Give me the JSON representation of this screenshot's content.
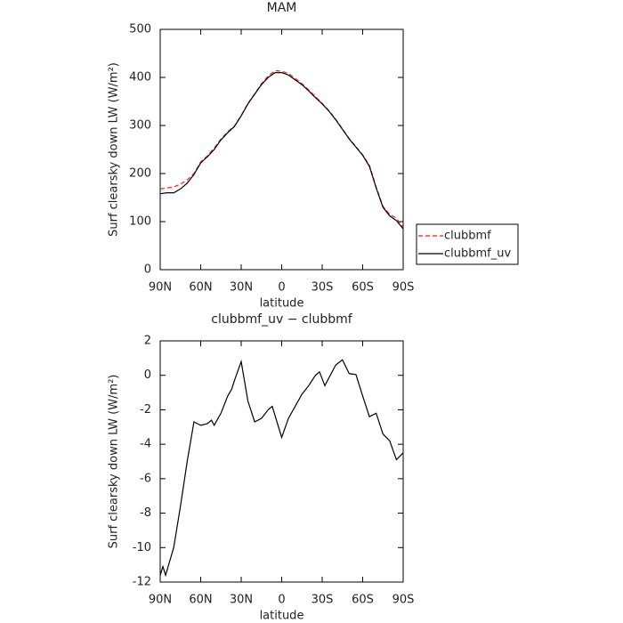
{
  "chart_data": [
    {
      "type": "line",
      "title": "MAM",
      "x_label": "latitude",
      "y_label": "Surf clearsky down LW (W/m²)",
      "x": [
        90,
        85,
        80,
        75,
        70,
        65,
        60,
        55,
        50,
        45,
        40,
        35,
        30,
        25,
        20,
        15,
        10,
        5,
        0,
        -5,
        -10,
        -15,
        -20,
        -25,
        -30,
        -35,
        -40,
        -45,
        -50,
        -55,
        -60,
        -65,
        -70,
        -75,
        -80,
        -85,
        -90
      ],
      "series": [
        {
          "name": "clubbmf",
          "color": "#e8231f",
          "style": "dashed",
          "values": [
            168,
            170,
            172,
            178,
            187,
            200,
            224,
            237,
            253,
            272,
            287,
            299,
            321,
            346,
            366,
            387,
            403,
            414,
            413,
            408,
            398,
            387,
            374,
            360,
            346,
            331,
            313,
            293,
            273,
            256,
            239,
            217,
            172,
            132,
            115,
            107,
            88
          ]
        },
        {
          "name": "clubbmf_uv",
          "color": "#000000",
          "style": "solid",
          "values": [
            158,
            160,
            160,
            168,
            180,
            198,
            222,
            235,
            250,
            270,
            285,
            298,
            320,
            345,
            365,
            385,
            400,
            410,
            410,
            405,
            395,
            385,
            372,
            358,
            345,
            330,
            312,
            292,
            272,
            255,
            238,
            215,
            170,
            130,
            112,
            102,
            85
          ]
        }
      ],
      "xlim": [
        90,
        -90
      ],
      "xticks": [
        {
          "value": 90,
          "label": "90N"
        },
        {
          "value": 60,
          "label": "60N"
        },
        {
          "value": 30,
          "label": "30N"
        },
        0,
        {
          "value": -30,
          "label": "30S"
        },
        {
          "value": -60,
          "label": "60S"
        },
        {
          "value": -90,
          "label": "90S"
        }
      ],
      "ylim": [
        0,
        500
      ],
      "yticks": [
        0,
        100,
        200,
        300,
        400,
        500
      ],
      "legend": "outside-right"
    },
    {
      "type": "line",
      "title": "clubbmf_uv − clubbmf",
      "x_label": "latitude",
      "y_label": "Surf clearsky down LW (W/m²)",
      "x": [
        90,
        88,
        86,
        80,
        75,
        70,
        65,
        60,
        55,
        52,
        50,
        45,
        40,
        37,
        35,
        30,
        25,
        20,
        15,
        10,
        7,
        0,
        -5,
        -10,
        -15,
        -20,
        -25,
        -28,
        -32,
        -40,
        -45,
        -50,
        -55,
        -60,
        -65,
        -70,
        -75,
        -80,
        -85,
        -90
      ],
      "series": [
        {
          "color": "#000000",
          "style": "solid",
          "values": [
            -11.6,
            -11.1,
            -11.6,
            -10,
            -7.6,
            -5,
            -2.7,
            -2.9,
            -2.8,
            -2.6,
            -2.9,
            -2.2,
            -1.2,
            -0.8,
            -0.3,
            0.8,
            -1.5,
            -2.7,
            -2.5,
            -2,
            -1.8,
            -3.6,
            -2.5,
            -1.8,
            -1.1,
            -0.6,
            0,
            0.2,
            -0.6,
            0.6,
            0.9,
            0.1,
            0.05,
            -1.2,
            -2.4,
            -2.2,
            -3.4,
            -3.8,
            -4.9,
            -4.5
          ]
        }
      ],
      "xlim": [
        90,
        -90
      ],
      "xticks": [
        {
          "value": 90,
          "label": "90N"
        },
        {
          "value": 60,
          "label": "60N"
        },
        {
          "value": 30,
          "label": "30N"
        },
        0,
        {
          "value": -30,
          "label": "30S"
        },
        {
          "value": -60,
          "label": "60S"
        },
        {
          "value": -90,
          "label": "90S"
        }
      ],
      "ylim": [
        -12,
        2
      ],
      "yticks": [
        -12,
        -10,
        -8,
        -6,
        -4,
        -2,
        0,
        2
      ]
    }
  ]
}
